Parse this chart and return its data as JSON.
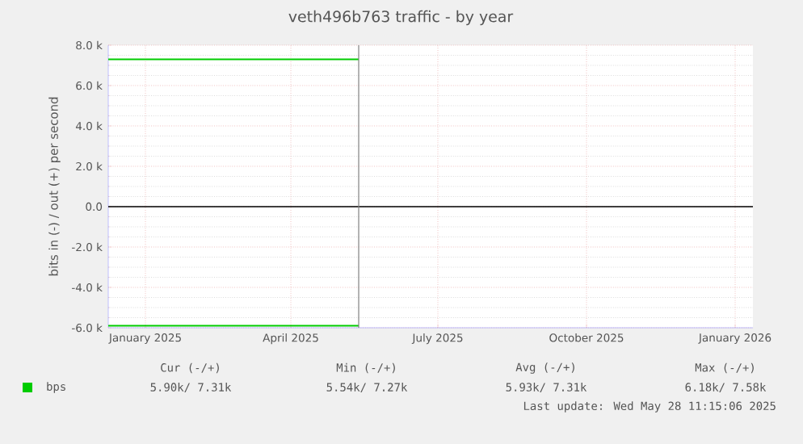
{
  "chart_data": {
    "type": "line",
    "title": "veth496b763 traffic - by year",
    "ylabel": "bits in (-) / out (+) per second",
    "x": [
      "2024-12-09",
      "2025-05-13"
    ],
    "series": [
      {
        "name": "bps",
        "color": "#00cc00",
        "values": [
          7300,
          7300
        ]
      },
      {
        "color": "#00cc00",
        "values": [
          -5900,
          -5900
        ]
      }
    ],
    "xlim": [
      "2024-12-09",
      "2026-01-12"
    ],
    "xticks": [
      {
        "value": "2025-01-01",
        "label": "January 2025"
      },
      {
        "value": "2025-04-01",
        "label": "April 2025"
      },
      {
        "value": "2025-07-01",
        "label": "July 2025"
      },
      {
        "value": "2025-10-01",
        "label": "October 2025"
      },
      {
        "value": "2026-01-01",
        "label": "January 2026"
      }
    ],
    "ylim": [
      -6000,
      8000
    ],
    "yticks": [
      {
        "value": -6000,
        "label": "-6.0 k"
      },
      {
        "value": -4000,
        "label": "-4.0 k"
      },
      {
        "value": -2000,
        "label": "-2.0 k"
      },
      {
        "value": 0,
        "label": "0.0"
      },
      {
        "value": 2000,
        "label": "2.0 k"
      },
      {
        "value": 4000,
        "label": "4.0 k"
      },
      {
        "value": 6000,
        "label": "6.0 k"
      },
      {
        "value": 8000,
        "label": "8.0 k"
      }
    ],
    "ref_lines": [
      {
        "axis": "y",
        "value": 0,
        "color": "#000000"
      },
      {
        "axis": "x",
        "value": "2025-05-13",
        "color": "#808080"
      }
    ],
    "grid": true,
    "legend": "bottom",
    "annotations": [
      "Cur (-/+)",
      "Min (-/+)",
      "Avg (-/+)",
      "Max (-/+)",
      "5.90k/ 7.31k",
      "5.54k/ 7.27k",
      "5.93k/ 7.31k",
      "6.18k/ 7.58k",
      "Last update: Wed May 28 11:15:06 2025"
    ]
  }
}
